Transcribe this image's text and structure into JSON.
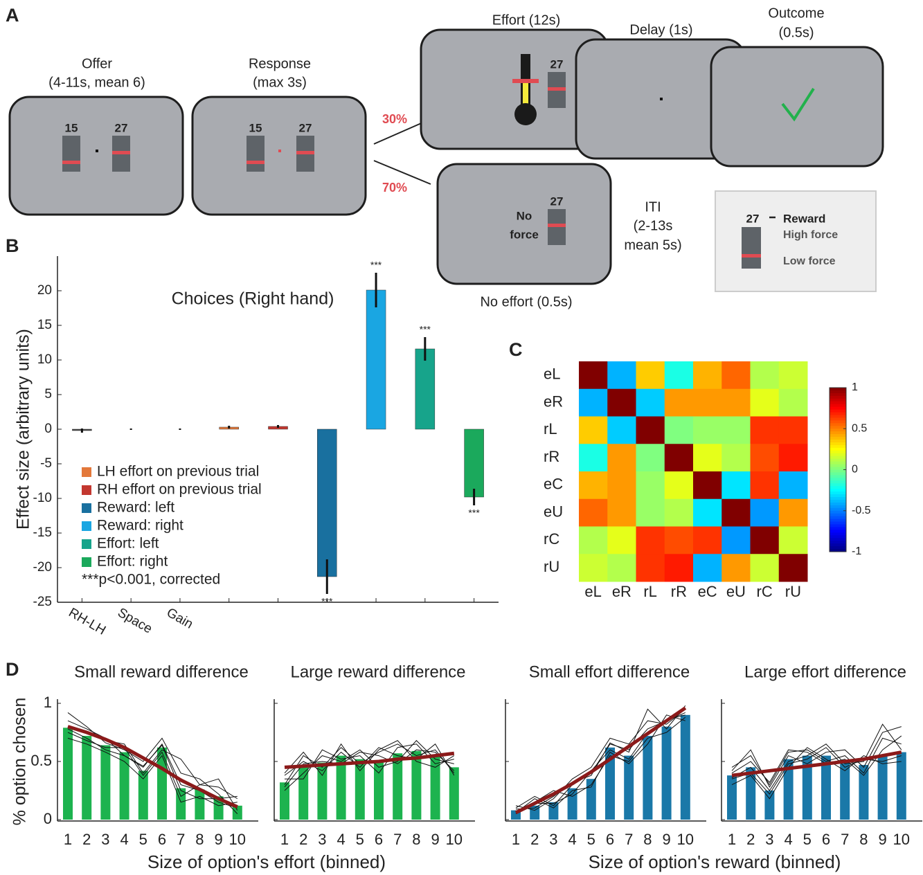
{
  "panel_labels": [
    "A",
    "B",
    "C",
    "D"
  ],
  "panel_a": {
    "offer_title": [
      "Offer",
      "(4-11s, mean 6)"
    ],
    "offer_labels": [
      "15",
      "27"
    ],
    "response_title": [
      "Response",
      "(max 3s)"
    ],
    "response_labels": [
      "15",
      "27"
    ],
    "prob_effort": "30%",
    "prob_no_effort": "70%",
    "effort_title": "Effort (12s)",
    "effort_label": "27",
    "delay_title": "Delay (1s)",
    "outcome_title": [
      "Outcome",
      "(0.5s)"
    ],
    "no_force_text": [
      "No",
      "force"
    ],
    "no_force_label": "27",
    "no_effort_title": "No effort (0.5s)",
    "iti": [
      "ITI",
      "(2-13s",
      "mean 5s)"
    ],
    "legend": {
      "reward_value": "27",
      "reward": "Reward",
      "high": "High force",
      "low": "Low force"
    }
  },
  "chart_data": [
    {
      "type": "bar",
      "title": "Choices (Right hand)",
      "ylabel": "Effect size (arbitrary units)",
      "categories": [
        "RH-LH",
        "Space",
        "Gain",
        null,
        null,
        null,
        null,
        null,
        null
      ],
      "values": [
        -0.2,
        0,
        0,
        0.3,
        0.4,
        -21.3,
        20.1,
        11.6,
        -9.8
      ],
      "errors": [
        0.3,
        0.1,
        0.1,
        0.2,
        0.2,
        2.5,
        2.5,
        1.7,
        1.2
      ],
      "colors": [
        "#444444",
        "#444444",
        "#444444",
        "#e3783a",
        "#c3372f",
        "#19709f",
        "#1aa6e2",
        "#17a48b",
        "#1ba95c"
      ],
      "significance": [
        null,
        null,
        null,
        null,
        null,
        "***",
        "***",
        "***",
        "***"
      ],
      "ylim": [
        -25,
        25
      ],
      "yticks": [
        -25,
        -20,
        -15,
        -10,
        -5,
        0,
        5,
        10,
        15,
        20
      ],
      "legend": [
        {
          "name": "LH effort on previous trial",
          "color": "#e3783a"
        },
        {
          "name": "RH effort on previous trial",
          "color": "#c3372f"
        },
        {
          "name": "Reward: left",
          "color": "#19709f"
        },
        {
          "name": "Reward: right",
          "color": "#1aa6e2"
        },
        {
          "name": "Effort: left",
          "color": "#17a48b"
        },
        {
          "name": "Effort: right",
          "color": "#1ba95c"
        }
      ],
      "note": "***p<0.001, corrected"
    },
    {
      "type": "heatmap",
      "colormap": "jet",
      "rows": [
        "eL",
        "eR",
        "rL",
        "rR",
        "eC",
        "eU",
        "rC",
        "rU"
      ],
      "columns": [
        "eL",
        "eR",
        "rL",
        "rR",
        "eC",
        "eU",
        "rC",
        "rU"
      ],
      "values": [
        [
          1,
          -0.4,
          0.35,
          -0.2,
          0.4,
          0.55,
          0.1,
          0.15
        ],
        [
          -0.4,
          1,
          -0.35,
          0.45,
          0.45,
          0.45,
          0.2,
          0.1
        ],
        [
          0.35,
          -0.35,
          1,
          0,
          0.05,
          0.05,
          0.65,
          0.65
        ],
        [
          -0.2,
          0.45,
          0,
          1,
          0.2,
          0.1,
          0.6,
          0.7
        ],
        [
          0.4,
          0.45,
          0.05,
          0.2,
          1,
          -0.3,
          0.65,
          -0.4
        ],
        [
          0.55,
          0.45,
          0.05,
          0.1,
          -0.3,
          1,
          -0.45,
          0.45
        ],
        [
          0.1,
          0.2,
          0.65,
          0.6,
          0.65,
          -0.45,
          1,
          0.15
        ],
        [
          0.15,
          0.1,
          0.65,
          0.7,
          -0.4,
          0.45,
          0.15,
          1
        ]
      ],
      "clim": [
        -1,
        1
      ],
      "colorbar_ticks": [
        1,
        0.5,
        0,
        -0.5,
        -1
      ]
    },
    {
      "type": "bar",
      "title": "Small reward difference",
      "ylabel": "% option chosen",
      "xlabel": "Size of option's effort (binned)",
      "x": [
        1,
        2,
        3,
        4,
        5,
        6,
        7,
        8,
        9,
        10
      ],
      "color": "#1db34f",
      "fit_color": "#8b1a1a",
      "show_ytick_labels": true,
      "values": [
        0.79,
        0.72,
        0.64,
        0.58,
        0.42,
        0.62,
        0.27,
        0.26,
        0.2,
        0.12
      ],
      "fit": [
        0.8,
        0.75,
        0.69,
        0.62,
        0.53,
        0.44,
        0.34,
        0.26,
        0.18,
        0.11
      ],
      "subjects": [
        [
          0.85,
          0.78,
          0.7,
          0.55,
          0.45,
          0.65,
          0.3,
          0.25,
          0.15,
          0.1
        ],
        [
          0.75,
          0.68,
          0.62,
          0.62,
          0.38,
          0.58,
          0.2,
          0.3,
          0.28,
          0.18
        ],
        [
          0.92,
          0.8,
          0.66,
          0.6,
          0.5,
          0.7,
          0.4,
          0.35,
          0.22,
          0.05
        ],
        [
          0.7,
          0.65,
          0.58,
          0.5,
          0.35,
          0.55,
          0.15,
          0.2,
          0.12,
          0.15
        ],
        [
          0.8,
          0.75,
          0.68,
          0.65,
          0.4,
          0.6,
          0.52,
          0.3,
          0.35,
          0.08
        ],
        [
          0.78,
          0.7,
          0.6,
          0.55,
          0.46,
          0.64,
          0.25,
          0.18,
          0.18,
          0.2
        ]
      ],
      "ylim": [
        0,
        1
      ],
      "yticks": [
        0,
        0.5,
        1
      ]
    },
    {
      "type": "bar",
      "title": "Large reward difference",
      "x": [
        1,
        2,
        3,
        4,
        5,
        6,
        7,
        8,
        9,
        10
      ],
      "color": "#1db34f",
      "fit_color": "#8b1a1a",
      "show_ytick_labels": false,
      "values": [
        0.32,
        0.45,
        0.49,
        0.55,
        0.52,
        0.51,
        0.57,
        0.59,
        0.55,
        0.45
      ],
      "fit": [
        0.45,
        0.46,
        0.47,
        0.48,
        0.49,
        0.5,
        0.52,
        0.53,
        0.55,
        0.57
      ],
      "subjects": [
        [
          0.3,
          0.55,
          0.45,
          0.62,
          0.48,
          0.58,
          0.65,
          0.55,
          0.6,
          0.4
        ],
        [
          0.25,
          0.4,
          0.55,
          0.5,
          0.6,
          0.45,
          0.5,
          0.68,
          0.52,
          0.48
        ],
        [
          0.38,
          0.5,
          0.42,
          0.58,
          0.45,
          0.62,
          0.55,
          0.52,
          0.65,
          0.38
        ],
        [
          0.35,
          0.35,
          0.6,
          0.52,
          0.55,
          0.4,
          0.62,
          0.65,
          0.48,
          0.52
        ],
        [
          0.28,
          0.48,
          0.5,
          0.48,
          0.58,
          0.55,
          0.48,
          0.6,
          0.58,
          0.42
        ],
        [
          0.4,
          0.58,
          0.38,
          0.65,
          0.42,
          0.6,
          0.68,
          0.5,
          0.45,
          0.55
        ]
      ],
      "ylim": [
        0,
        1
      ],
      "yticks": [
        0,
        0.5,
        1
      ]
    },
    {
      "type": "bar",
      "title": "Small effort difference",
      "xlabel": "Size of option's reward (binned)",
      "x": [
        1,
        2,
        3,
        4,
        5,
        6,
        7,
        8,
        9,
        10
      ],
      "color": "#1a78a8",
      "fit_color": "#8b1a1a",
      "show_ytick_labels": false,
      "values": [
        0.08,
        0.12,
        0.15,
        0.27,
        0.35,
        0.62,
        0.55,
        0.72,
        0.8,
        0.9
      ],
      "fit": [
        0.06,
        0.14,
        0.22,
        0.31,
        0.41,
        0.52,
        0.63,
        0.74,
        0.85,
        0.96
      ],
      "subjects": [
        [
          0.1,
          0.2,
          0.12,
          0.3,
          0.4,
          0.65,
          0.6,
          0.78,
          0.85,
          0.92
        ],
        [
          0.05,
          0.15,
          0.25,
          0.2,
          0.3,
          0.55,
          0.5,
          0.7,
          0.75,
          0.88
        ],
        [
          0.12,
          0.08,
          0.18,
          0.35,
          0.45,
          0.7,
          0.65,
          0.85,
          0.82,
          0.95
        ],
        [
          0.06,
          0.18,
          0.1,
          0.25,
          0.28,
          0.58,
          0.48,
          0.65,
          0.9,
          0.85
        ],
        [
          0.09,
          0.1,
          0.2,
          0.32,
          0.38,
          0.66,
          0.58,
          0.95,
          0.78,
          0.98
        ],
        [
          0.07,
          0.14,
          0.14,
          0.22,
          0.42,
          0.6,
          0.52,
          0.75,
          0.86,
          0.9
        ]
      ],
      "ylim": [
        0,
        1
      ],
      "yticks": [
        0,
        0.5,
        1
      ]
    },
    {
      "type": "bar",
      "title": "Large effort difference",
      "x": [
        1,
        2,
        3,
        4,
        5,
        6,
        7,
        8,
        9,
        10
      ],
      "color": "#1a78a8",
      "fit_color": "#8b1a1a",
      "show_ytick_labels": false,
      "values": [
        0.38,
        0.45,
        0.25,
        0.52,
        0.55,
        0.55,
        0.5,
        0.47,
        0.55,
        0.58
      ],
      "fit": [
        0.38,
        0.4,
        0.42,
        0.44,
        0.46,
        0.48,
        0.5,
        0.52,
        0.55,
        0.58
      ],
      "subjects": [
        [
          0.45,
          0.55,
          0.3,
          0.58,
          0.6,
          0.5,
          0.55,
          0.4,
          0.7,
          0.65
        ],
        [
          0.35,
          0.4,
          0.22,
          0.48,
          0.52,
          0.62,
          0.45,
          0.52,
          0.5,
          0.55
        ],
        [
          0.42,
          0.6,
          0.28,
          0.55,
          0.48,
          0.58,
          0.6,
          0.45,
          0.75,
          0.8
        ],
        [
          0.3,
          0.38,
          0.18,
          0.45,
          0.62,
          0.52,
          0.42,
          0.55,
          0.48,
          0.5
        ],
        [
          0.4,
          0.5,
          0.32,
          0.6,
          0.58,
          0.48,
          0.52,
          0.38,
          0.6,
          0.72
        ],
        [
          0.36,
          0.45,
          0.25,
          0.5,
          0.55,
          0.65,
          0.48,
          0.5,
          0.82,
          0.6
        ]
      ],
      "ylim": [
        0,
        1
      ],
      "yticks": [
        0,
        0.5,
        1
      ]
    }
  ]
}
